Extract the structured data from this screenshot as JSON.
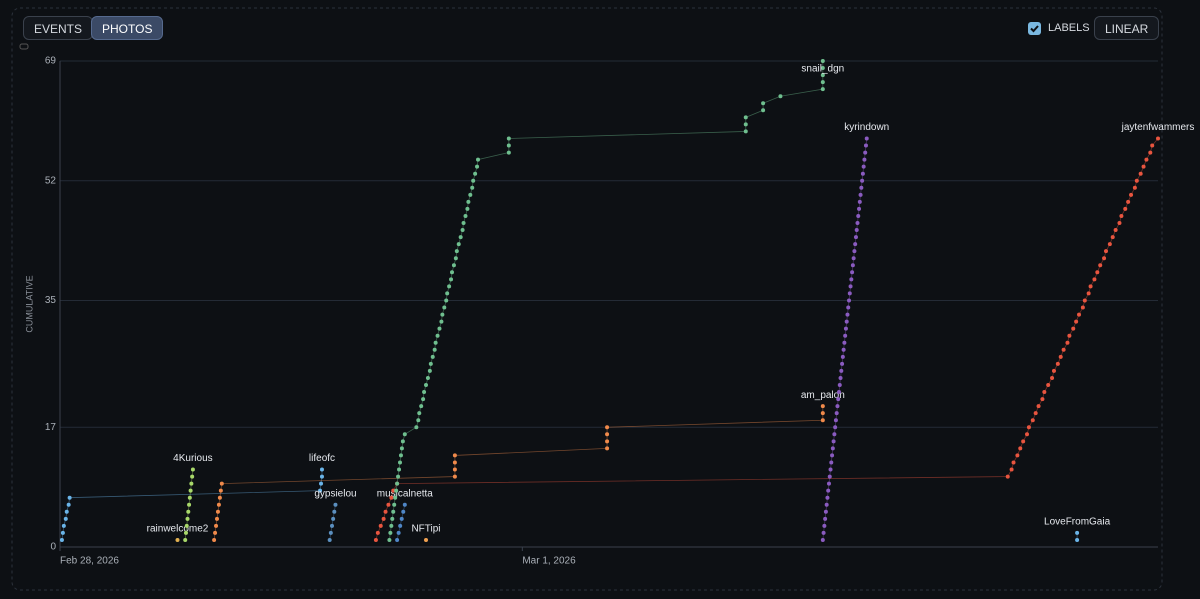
{
  "ui": {
    "tabs": [
      {
        "label": "EVENTS",
        "active": false
      },
      {
        "label": "PHOTOS",
        "active": true
      }
    ],
    "labels_toggle": {
      "label": "LABELS",
      "checked": true
    },
    "scale_button": "LINEAR"
  },
  "chart_data": {
    "type": "scatter",
    "ylabel": "CUMULATIVE",
    "ylim": [
      0,
      69
    ],
    "yticks": [
      0,
      17,
      35,
      52,
      69
    ],
    "xlim": [
      0,
      57
    ],
    "xticks": [
      {
        "value": 0,
        "label": "Feb 28, 2026"
      },
      {
        "value": 24,
        "label": "Mar 1, 2026"
      }
    ],
    "grid": true,
    "series": [
      {
        "name": "lifeofc",
        "color": "#6ab4e8",
        "x": [
          0.1,
          0.15,
          0.2,
          0.3,
          0.35,
          0.45,
          0.5,
          13.5,
          13.55,
          13.6,
          13.6
        ],
        "values": [
          1,
          2,
          3,
          4,
          5,
          6,
          7,
          8,
          9,
          10,
          11
        ]
      },
      {
        "name": "rainwelcome2",
        "color": "#e0b050",
        "x": [
          6.1
        ],
        "values": [
          1
        ]
      },
      {
        "name": "4Kurious",
        "color": "#a8d86a",
        "x": [
          6.5,
          6.54,
          6.58,
          6.62,
          6.66,
          6.7,
          6.74,
          6.78,
          6.82,
          6.86,
          6.9
        ],
        "values": [
          1,
          2,
          3,
          4,
          5,
          6,
          7,
          8,
          9,
          10,
          11
        ]
      },
      {
        "name": "am_palon",
        "color": "#f08a4b",
        "x": [
          8.0,
          8.05,
          8.1,
          8.15,
          8.2,
          8.25,
          8.3,
          8.35,
          8.4,
          20.5,
          20.5,
          20.5,
          20.5,
          28.4,
          28.4,
          28.4,
          28.4,
          39.6,
          39.6,
          39.6
        ],
        "values": [
          1,
          2,
          3,
          4,
          5,
          6,
          7,
          8,
          9,
          10,
          11,
          12,
          13,
          14,
          15,
          16,
          17,
          18,
          19,
          20
        ]
      },
      {
        "name": "gypsielou",
        "color": "#5b8fbf",
        "x": [
          14.0,
          14.06,
          14.12,
          14.18,
          14.24,
          14.3
        ],
        "values": [
          1,
          2,
          3,
          4,
          5,
          6
        ]
      },
      {
        "name": "musicalnetta",
        "color": "#4f86c6",
        "x": [
          17.5,
          17.58,
          17.66,
          17.74,
          17.82,
          17.9
        ],
        "values": [
          1,
          2,
          3,
          4,
          5,
          6
        ]
      },
      {
        "name": "NFTipi",
        "color": "#f0a050",
        "x": [
          19.0
        ],
        "values": [
          1
        ]
      },
      {
        "name": "jaytenfwammers",
        "color": "#e8553f",
        "x": [
          16.4,
          16.5,
          16.65,
          16.8,
          16.9,
          17.05,
          17.2,
          17.3,
          17.5,
          49.2,
          49.4,
          49.5,
          49.7,
          49.85,
          50.0,
          50.2,
          50.3,
          50.5,
          50.65,
          50.8,
          51.0,
          51.1,
          51.3,
          51.5,
          51.6,
          51.8,
          51.95,
          52.1,
          52.3,
          52.4,
          52.6,
          52.75,
          52.9,
          53.1,
          53.2,
          53.4,
          53.5,
          53.7,
          53.85,
          54.0,
          54.2,
          54.3,
          54.5,
          54.65,
          54.8,
          55.0,
          55.1,
          55.3,
          55.45,
          55.6,
          55.8,
          55.9,
          56.1,
          56.25,
          56.4,
          56.6,
          56.7,
          57.0
        ],
        "values": [
          1,
          2,
          3,
          4,
          5,
          6,
          7,
          8,
          9,
          10,
          11,
          12,
          13,
          14,
          15,
          16,
          17,
          18,
          19,
          20,
          21,
          22,
          23,
          24,
          25,
          26,
          27,
          28,
          29,
          30,
          31,
          32,
          33,
          34,
          35,
          36,
          37,
          38,
          39,
          40,
          41,
          42,
          43,
          44,
          45,
          46,
          47,
          48,
          49,
          50,
          51,
          52,
          53,
          54,
          55,
          56,
          57,
          58
        ]
      },
      {
        "name": "snail_dgn",
        "color": "#6fbf8f",
        "x": [
          17.1,
          17.15,
          17.2,
          17.25,
          17.3,
          17.35,
          17.4,
          17.45,
          17.5,
          17.55,
          17.6,
          17.65,
          17.7,
          17.75,
          17.8,
          17.9,
          18.5,
          18.6,
          18.65,
          18.75,
          18.85,
          18.9,
          19.0,
          19.1,
          19.2,
          19.25,
          19.35,
          19.45,
          19.5,
          19.6,
          19.7,
          19.8,
          19.85,
          19.95,
          20.05,
          20.1,
          20.2,
          20.3,
          20.35,
          20.45,
          20.55,
          20.6,
          20.7,
          20.8,
          20.9,
          20.95,
          21.05,
          21.15,
          21.2,
          21.3,
          21.4,
          21.45,
          21.55,
          21.65,
          21.7,
          23.3,
          23.3,
          23.3,
          35.6,
          35.6,
          35.6,
          36.5,
          36.5,
          37.4,
          39.6,
          39.6,
          39.6,
          39.6,
          39.6
        ],
        "values": [
          1,
          2,
          3,
          4,
          5,
          6,
          7,
          8,
          9,
          10,
          11,
          12,
          13,
          14,
          15,
          16,
          17,
          18,
          19,
          20,
          21,
          22,
          23,
          24,
          25,
          26,
          27,
          28,
          29,
          30,
          31,
          32,
          33,
          34,
          35,
          36,
          37,
          38,
          39,
          40,
          41,
          42,
          43,
          44,
          45,
          46,
          47,
          48,
          49,
          50,
          51,
          52,
          53,
          54,
          55,
          56,
          57,
          58,
          59,
          60,
          61,
          62,
          63,
          64,
          65,
          66,
          67,
          68,
          69
        ]
      },
      {
        "name": "kyrindown",
        "color": "#8a5bc0",
        "x": [
          39.6,
          39.64,
          39.68,
          39.72,
          39.76,
          39.8,
          39.84,
          39.88,
          39.92,
          39.96,
          40.0,
          40.04,
          40.08,
          40.12,
          40.16,
          40.2,
          40.24,
          40.28,
          40.32,
          40.36,
          40.4,
          40.44,
          40.48,
          40.52,
          40.56,
          40.6,
          40.64,
          40.68,
          40.72,
          40.76,
          40.8,
          40.84,
          40.88,
          40.92,
          40.96,
          41.0,
          41.04,
          41.08,
          41.12,
          41.16,
          41.2,
          41.24,
          41.28,
          41.32,
          41.36,
          41.4,
          41.44,
          41.48,
          41.52,
          41.56,
          41.6,
          41.64,
          41.68,
          41.72,
          41.76,
          41.8,
          41.84,
          41.88
        ],
        "values": [
          1,
          2,
          3,
          4,
          5,
          6,
          7,
          8,
          9,
          10,
          11,
          12,
          13,
          14,
          15,
          16,
          17,
          18,
          19,
          20,
          21,
          22,
          23,
          24,
          25,
          26,
          27,
          28,
          29,
          30,
          31,
          32,
          33,
          34,
          35,
          36,
          37,
          38,
          39,
          40,
          41,
          42,
          43,
          44,
          45,
          46,
          47,
          48,
          49,
          50,
          51,
          52,
          53,
          54,
          55,
          56,
          57,
          58
        ]
      },
      {
        "name": "LoveFromGaia",
        "color": "#6ab4e8",
        "x": [
          52.8,
          52.8
        ],
        "values": [
          1,
          2
        ]
      }
    ]
  }
}
